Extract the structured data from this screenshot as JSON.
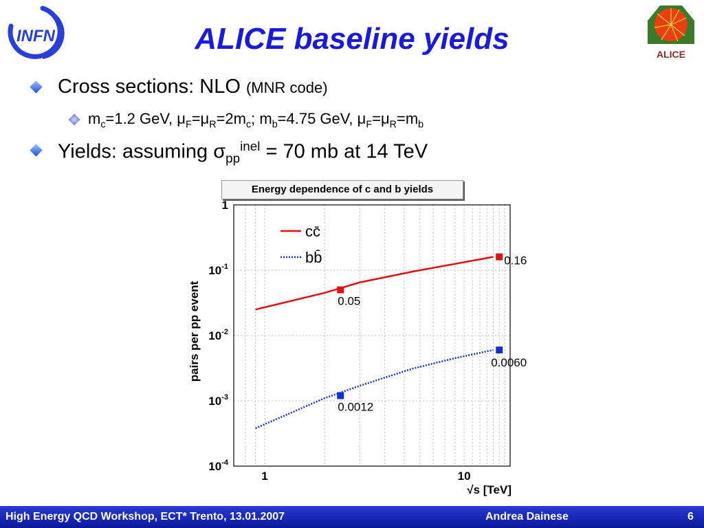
{
  "slide": {
    "title": "ALICE baseline yields",
    "bullet1_main": "Cross sections: NLO ",
    "bullet1_small": "(MNR code)",
    "bullet2": {
      "m": "m",
      "c": "c",
      "eq1": "=1.2 GeV, ",
      "mu": "μ",
      "F": "F",
      "eq": "=",
      "R": "R",
      "eq2": "=2m",
      "semi": "; m",
      "b": "b",
      "eq3": "=4.75 GeV, ",
      "eq4": "=m"
    },
    "bullet3": {
      "pre": "Yields: assuming ",
      "sigma": "σ",
      "sub": "pp",
      "sup": "inel",
      "post": " = 70 mb at 14 TeV"
    }
  },
  "logos": {
    "left": "INFN",
    "right": "ALICE"
  },
  "footer": {
    "left": "High Energy QCD Workshop, ECT* Trento, 13.01.2007",
    "center": "Andrea Dainese",
    "page": "6"
  },
  "colors": {
    "title": "#1a1adb",
    "cc_series": "#e01010",
    "bb_series": "#1530d0",
    "footer_bg": "#1a2bc8"
  },
  "chart_data": {
    "type": "line",
    "title": "Energy dependence of c and b yields",
    "xlabel": "√s [TeV]",
    "ylabel": "pairs per pp event",
    "x_scale": "log",
    "y_scale": "log",
    "xlim": [
      0.7,
      17
    ],
    "ylim": [
      0.0001,
      1
    ],
    "x_ticks": [
      {
        "v": 1,
        "label": "1"
      },
      {
        "v": 10,
        "label": "10"
      }
    ],
    "y_ticks": [
      {
        "v": 1,
        "label": "1"
      },
      {
        "v": 0.1,
        "label": "10",
        "exp": "-1"
      },
      {
        "v": 0.01,
        "label": "10",
        "exp": "-2"
      },
      {
        "v": 0.001,
        "label": "10",
        "exp": "-3"
      },
      {
        "v": 0.0001,
        "label": "10",
        "exp": "-4"
      }
    ],
    "grid": true,
    "legend": "top-left",
    "series": [
      {
        "name": "cc̄",
        "style": "solid",
        "color": "#e01010",
        "x": [
          0.9,
          2.0,
          3.0,
          5.5,
          9.0,
          14.0
        ],
        "y": [
          0.025,
          0.045,
          0.065,
          0.095,
          0.125,
          0.16
        ]
      },
      {
        "name": "bb̄",
        "style": "dotted",
        "color": "#1530d0",
        "x": [
          0.9,
          2.0,
          3.0,
          5.5,
          9.0,
          14.0
        ],
        "y": [
          0.00038,
          0.0011,
          0.0017,
          0.0031,
          0.0045,
          0.006
        ]
      }
    ],
    "markers": [
      {
        "series": 0,
        "x": 2.4,
        "y": 0.05,
        "label": "0.05",
        "label_pos": "below"
      },
      {
        "series": 0,
        "x": 15.0,
        "y": 0.16,
        "label": "0.16",
        "label_pos": "right"
      },
      {
        "series": 1,
        "x": 2.4,
        "y": 0.0012,
        "label": "0.0012",
        "label_pos": "below"
      },
      {
        "series": 1,
        "x": 15.0,
        "y": 0.006,
        "label": "0.0060",
        "label_pos": "below"
      }
    ]
  }
}
